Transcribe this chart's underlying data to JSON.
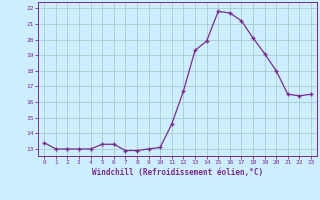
{
  "x": [
    0,
    1,
    2,
    3,
    4,
    5,
    6,
    7,
    8,
    9,
    10,
    11,
    12,
    13,
    14,
    15,
    16,
    17,
    18,
    19,
    20,
    21,
    22,
    23
  ],
  "y": [
    13.4,
    13.0,
    13.0,
    13.0,
    13.0,
    13.3,
    13.3,
    12.9,
    12.9,
    13.0,
    13.1,
    14.6,
    16.7,
    19.3,
    19.9,
    21.8,
    21.7,
    21.2,
    20.1,
    19.1,
    18.0,
    16.5,
    16.4,
    16.5
  ],
  "line_color": "#7b2d8b",
  "marker": "+",
  "bg_color": "#cceeff",
  "grid_color": "#aacccc",
  "xlabel": "Windchill (Refroidissement éolien,°C)",
  "yticks": [
    13,
    14,
    15,
    16,
    17,
    18,
    19,
    20,
    21,
    22
  ],
  "xlim": [
    -0.5,
    23.5
  ],
  "ylim": [
    12.55,
    22.4
  ],
  "xtick_labels": [
    "0",
    "1",
    "2",
    "3",
    "4",
    "5",
    "6",
    "7",
    "8",
    "9",
    "10",
    "11",
    "12",
    "13",
    "14",
    "15",
    "16",
    "17",
    "18",
    "19",
    "20",
    "21",
    "22",
    "23"
  ],
  "tick_color": "#7b2d8b",
  "label_color": "#7b2d8b"
}
